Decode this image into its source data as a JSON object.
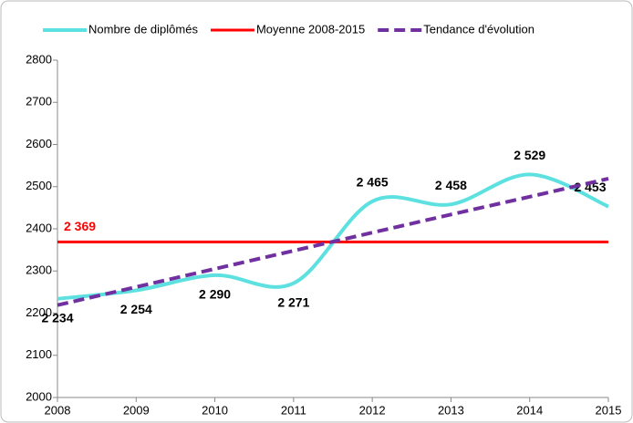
{
  "chart_data": {
    "type": "line",
    "x": [
      2008,
      2009,
      2010,
      2011,
      2012,
      2013,
      2014,
      2015
    ],
    "xlim": [
      2008,
      2015
    ],
    "xticks": [
      2008,
      2009,
      2010,
      2011,
      2012,
      2013,
      2014,
      2015
    ],
    "ylim": [
      2000,
      2800
    ],
    "yticks": [
      2000,
      2100,
      2200,
      2300,
      2400,
      2500,
      2600,
      2700,
      2800
    ],
    "legend": "top",
    "series": [
      {
        "name": "Nombre de diplômés",
        "color": "#5ce1e0",
        "style": "smooth",
        "values": [
          2234,
          2254,
          2290,
          2271,
          2465,
          2458,
          2529,
          2453
        ],
        "value_labels": [
          "2 234",
          "2 254",
          "2 290",
          "2 271",
          "2 465",
          "2 458",
          "2 529",
          "2 453"
        ]
      },
      {
        "name": "Moyenne 2008-2015",
        "color": "#ff0000",
        "style": "solid",
        "values": [
          2369,
          2369,
          2369,
          2369,
          2369,
          2369,
          2369,
          2369
        ],
        "value_labels": [
          "2 369",
          null,
          null,
          null,
          null,
          null,
          null,
          null
        ]
      },
      {
        "name": "Tendance d'évolution",
        "color": "#7030a0",
        "style": "dashed",
        "values": [
          2219,
          2262,
          2305,
          2348,
          2391,
          2434,
          2476,
          2519
        ]
      }
    ]
  }
}
